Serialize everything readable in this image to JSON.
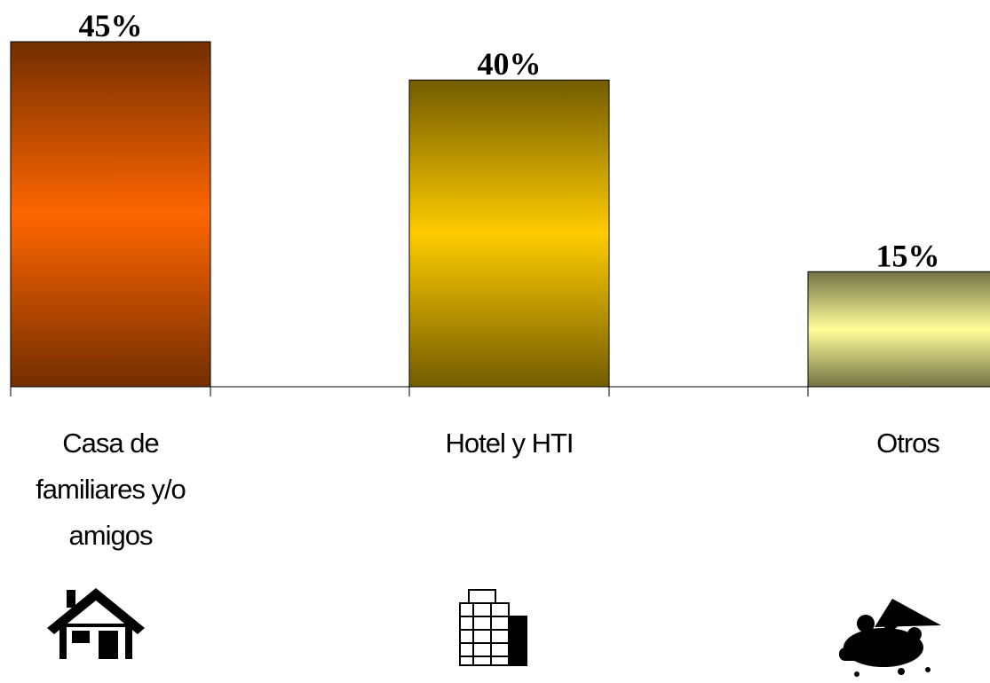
{
  "chart_data": {
    "type": "bar",
    "categories": [
      "Casa de familiares y/o amigos",
      "Hotel y HTI",
      "Otros"
    ],
    "values": [
      45,
      40,
      15
    ],
    "value_labels": [
      "45%",
      "40%",
      "15%"
    ],
    "colors": [
      "#ff6600",
      "#ffcc00",
      "#ffff99"
    ]
  }
}
